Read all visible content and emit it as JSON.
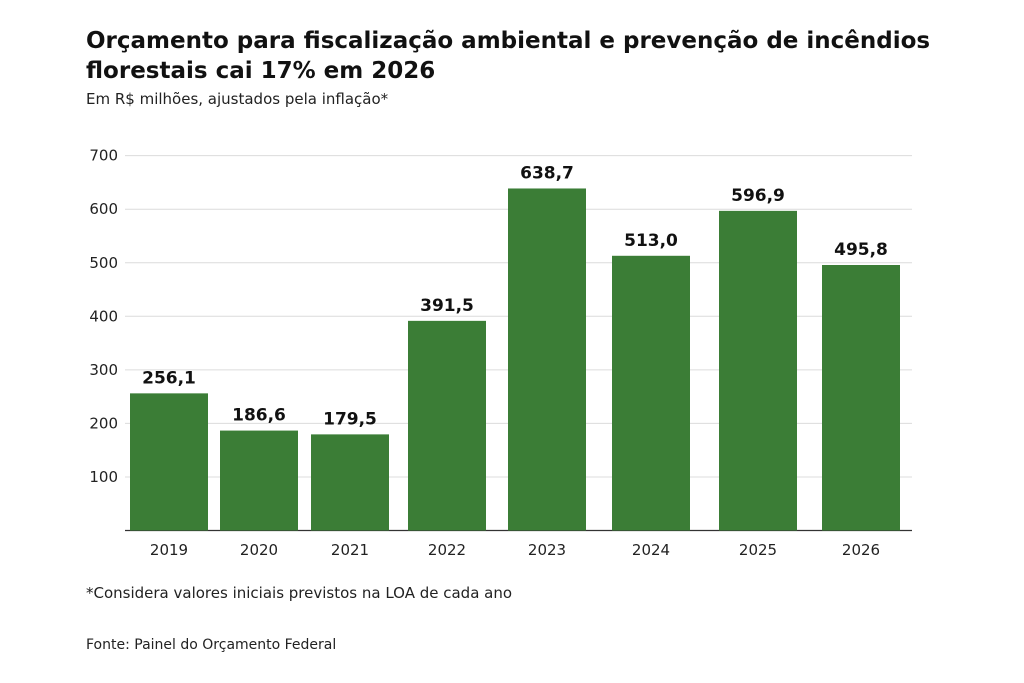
{
  "chart_data": {
    "type": "bar",
    "title": "Orçamento para fiscalização ambiental e prevenção de incêndios florestais cai 17% em 2026",
    "subtitle": "Em R$ milhões, ajustados pela inflação*",
    "categories": [
      "2019",
      "2020",
      "2021",
      "2022",
      "2023",
      "2024",
      "2025",
      "2026"
    ],
    "values": [
      256.1,
      186.6,
      179.5,
      391.5,
      638.7,
      513.0,
      596.9,
      495.8
    ],
    "data_labels": [
      "256,1",
      "186,6",
      "179,5",
      "391,5",
      "638,7",
      "513,0",
      "596,9",
      "495,8"
    ],
    "yticks": [
      100,
      200,
      300,
      400,
      500,
      600,
      700
    ],
    "ylim": [
      0,
      720
    ],
    "grid": true,
    "bar_color": "#3b7d36",
    "xlabel": "",
    "ylabel": "",
    "footnote": "*Considera valores iniciais previstos na LOA de cada ano",
    "source": "Fonte: Painel do Orçamento Federal"
  }
}
